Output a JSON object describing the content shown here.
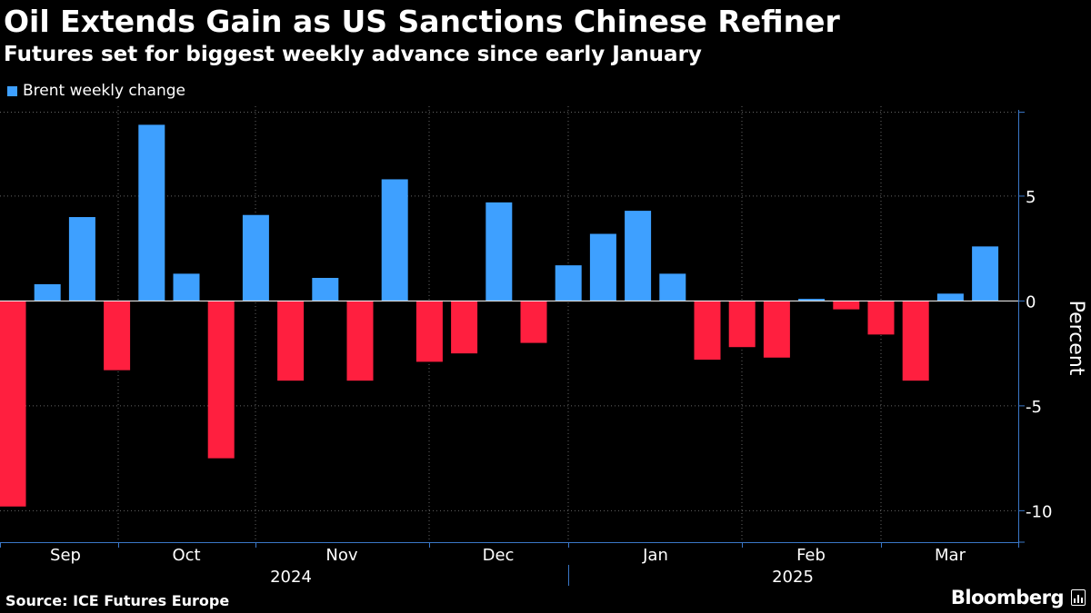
{
  "header": {
    "title": "Oil Extends Gain as US Sanctions Chinese Refiner",
    "subtitle": "Futures set for biggest weekly advance since early January"
  },
  "legend": {
    "label": "Brent weekly change"
  },
  "footer": {
    "source": "Source: ICE Futures Europe",
    "brand": "Bloomberg"
  },
  "colors": {
    "positive": "#3ea0ff",
    "negative": "#ff1f3f",
    "grid": "#666666",
    "axis": "#3a77c7"
  },
  "chart_data": {
    "type": "bar",
    "title": "Oil Extends Gain as US Sanctions Chinese Refiner",
    "subtitle": "Futures set for biggest weekly advance since early January",
    "ylabel": "Percent",
    "ylim": [
      -11.5,
      9.5
    ],
    "yticks": [
      -10,
      -5,
      0,
      5
    ],
    "grid": true,
    "legend_position": "top-left",
    "series": [
      {
        "name": "Brent weekly change",
        "values": [
          -9.8,
          0.8,
          4.0,
          -3.3,
          8.4,
          1.3,
          -7.5,
          4.1,
          -3.8,
          1.1,
          -3.8,
          5.8,
          -2.9,
          -2.5,
          4.7,
          -2.0,
          1.7,
          3.2,
          4.3,
          1.3,
          -2.8,
          -2.2,
          -2.7,
          0.1,
          -0.4,
          -1.6,
          -3.8,
          0.35,
          2.6
        ]
      }
    ],
    "month_labels": [
      "Sep",
      "Oct",
      "Nov",
      "Dec",
      "Jan",
      "Feb",
      "Mar"
    ],
    "year_labels": [
      "2024",
      "2025"
    ]
  }
}
